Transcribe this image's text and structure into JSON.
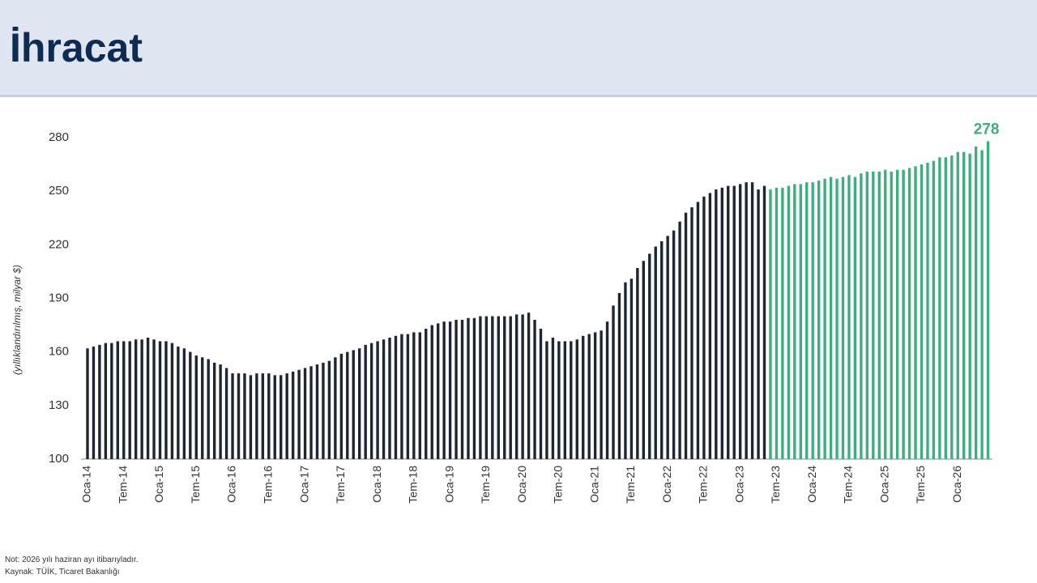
{
  "header": {
    "title": "İhracat"
  },
  "chart_data": {
    "type": "bar",
    "ylabel": "(yıllıklandırılmış, milyar $)",
    "ylim": [
      100,
      280
    ],
    "yticks": [
      100,
      130,
      160,
      190,
      220,
      250,
      280
    ],
    "categories": [
      "Oca-14",
      null,
      null,
      null,
      null,
      null,
      "Tem-14",
      null,
      null,
      null,
      null,
      null,
      "Oca-15",
      null,
      null,
      null,
      null,
      null,
      "Tem-15",
      null,
      null,
      null,
      null,
      null,
      "Oca-16",
      null,
      null,
      null,
      null,
      null,
      "Tem-16",
      null,
      null,
      null,
      null,
      null,
      "Oca-17",
      null,
      null,
      null,
      null,
      null,
      "Tem-17",
      null,
      null,
      null,
      null,
      null,
      "Oca-18",
      null,
      null,
      null,
      null,
      null,
      "Tem-18",
      null,
      null,
      null,
      null,
      null,
      "Oca-19",
      null,
      null,
      null,
      null,
      null,
      "Tem-19",
      null,
      null,
      null,
      null,
      null,
      "Oca-20",
      null,
      null,
      null,
      null,
      null,
      "Tem-20",
      null,
      null,
      null,
      null,
      null,
      "Oca-21",
      null,
      null,
      null,
      null,
      null,
      "Tem-21",
      null,
      null,
      null,
      null,
      null,
      "Oca-22",
      null,
      null,
      null,
      null,
      null,
      "Tem-22",
      null,
      null,
      null,
      null,
      null,
      "Oca-23",
      null,
      null,
      null,
      null,
      null,
      "Tem-23",
      null,
      null,
      null,
      null,
      null,
      "Oca-24",
      null,
      null,
      null,
      null,
      null,
      "Tem-24",
      null,
      null,
      null,
      null,
      null,
      "Oca-25",
      null,
      null,
      null,
      null,
      null,
      "Tem-25",
      null,
      null,
      null,
      null,
      null,
      "Oca-26",
      null,
      null,
      null,
      null,
      null
    ],
    "values": [
      162,
      163,
      164,
      165,
      165,
      166,
      166,
      166,
      167,
      167,
      168,
      167,
      166,
      166,
      165,
      163,
      162,
      160,
      158,
      157,
      156,
      154,
      153,
      151,
      148,
      148,
      148,
      147,
      148,
      148,
      148,
      147,
      147,
      148,
      149,
      150,
      151,
      152,
      153,
      154,
      155,
      157,
      159,
      160,
      161,
      162,
      164,
      165,
      166,
      167,
      168,
      169,
      170,
      170,
      171,
      171,
      173,
      175,
      176,
      177,
      177,
      178,
      178,
      179,
      179,
      180,
      180,
      180,
      180,
      180,
      180,
      181,
      181,
      182,
      178,
      173,
      166,
      168,
      166,
      166,
      166,
      167,
      169,
      170,
      171,
      172,
      177,
      186,
      193,
      199,
      201,
      207,
      211,
      215,
      219,
      222,
      225,
      228,
      233,
      238,
      241,
      244,
      247,
      249,
      251,
      252,
      253,
      253,
      254,
      255,
      255,
      251,
      253,
      251,
      252,
      252,
      253,
      254,
      254,
      255,
      255,
      256,
      257,
      258,
      257,
      258,
      259,
      258,
      260,
      261,
      261,
      261,
      262,
      261,
      262,
      262,
      263,
      264,
      265,
      266,
      267,
      269,
      269,
      270,
      272,
      272,
      271,
      275,
      273,
      278
    ],
    "value_labels": [
      null,
      null,
      null,
      null,
      null,
      null,
      null,
      null,
      null,
      null,
      null,
      null,
      null,
      null,
      null,
      null,
      null,
      null,
      null,
      null,
      null,
      null,
      null,
      null,
      null,
      null,
      null,
      null,
      null,
      null,
      null,
      null,
      null,
      null,
      null,
      null,
      null,
      null,
      null,
      null,
      null,
      null,
      null,
      null,
      null,
      null,
      null,
      null,
      null,
      null,
      null,
      null,
      null,
      null,
      null,
      null,
      null,
      null,
      null,
      null,
      null,
      null,
      null,
      null,
      null,
      null,
      null,
      null,
      null,
      null,
      null,
      null,
      null,
      null,
      null,
      null,
      null,
      null,
      null,
      null,
      null,
      null,
      null,
      null,
      null,
      null,
      null,
      null,
      null,
      null,
      null,
      null,
      null,
      null,
      null,
      null,
      null,
      null,
      null,
      null,
      null,
      null,
      null,
      null,
      null,
      null,
      null,
      null,
      null,
      null,
      null,
      null,
      null,
      null,
      null,
      null,
      null,
      null,
      null,
      null,
      null,
      null,
      null,
      null,
      null,
      null,
      null,
      null,
      null,
      null,
      null,
      null,
      null,
      null,
      null,
      null,
      null,
      null,
      null,
      null,
      null,
      null,
      null,
      null,
      null,
      null,
      null,
      null,
      null,
      "278"
    ],
    "colors": [
      "#1c2733",
      "#1c2733",
      "#1c2733",
      "#1c2733",
      "#1c2733",
      "#1c2733",
      "#1c2733",
      "#1c2733",
      "#1c2733",
      "#1c2733",
      "#1c2733",
      "#1c2733",
      "#1c2733",
      "#1c2733",
      "#1c2733",
      "#1c2733",
      "#1c2733",
      "#1c2733",
      "#1c2733",
      "#1c2733",
      "#1c2733",
      "#1c2733",
      "#1c2733",
      "#1c2733",
      "#1c2733",
      "#1c2733",
      "#1c2733",
      "#1c2733",
      "#1c2733",
      "#1c2733",
      "#1c2733",
      "#1c2733",
      "#1c2733",
      "#1c2733",
      "#1c2733",
      "#1c2733",
      "#1c2733",
      "#1c2733",
      "#1c2733",
      "#1c2733",
      "#1c2733",
      "#1c2733",
      "#1c2733",
      "#1c2733",
      "#1c2733",
      "#1c2733",
      "#1c2733",
      "#1c2733",
      "#1c2733",
      "#1c2733",
      "#1c2733",
      "#1c2733",
      "#1c2733",
      "#1c2733",
      "#1c2733",
      "#1c2733",
      "#1c2733",
      "#1c2733",
      "#1c2733",
      "#1c2733",
      "#1c2733",
      "#1c2733",
      "#1c2733",
      "#1c2733",
      "#1c2733",
      "#1c2733",
      "#1c2733",
      "#1c2733",
      "#1c2733",
      "#1c2733",
      "#1c2733",
      "#1c2733",
      "#1c2733",
      "#1c2733",
      "#1c2733",
      "#1c2733",
      "#1c2733",
      "#1c2733",
      "#1c2733",
      "#1c2733",
      "#1c2733",
      "#1c2733",
      "#1c2733",
      "#1c2733",
      "#1c2733",
      "#1c2733",
      "#1c2733",
      "#1c2733",
      "#1c2733",
      "#1c2733",
      "#1c2733",
      "#1c2733",
      "#1c2733",
      "#1c2733",
      "#1c2733",
      "#1c2733",
      "#1c2733",
      "#1c2733",
      "#1c2733",
      "#1c2733",
      "#1c2733",
      "#1c2733",
      "#1c2733",
      "#1c2733",
      "#1c2733",
      "#1c2733",
      "#1c2733",
      "#1c2733",
      "#1c2733",
      "#1c2733",
      "#1c2733",
      "#1c2733",
      "#1c2733",
      "#3daf7f",
      "#3daf7f",
      "#3daf7f",
      "#3daf7f",
      "#3daf7f",
      "#3daf7f",
      "#3daf7f",
      "#3daf7f",
      "#3daf7f",
      "#3daf7f",
      "#3daf7f",
      "#3daf7f",
      "#3daf7f",
      "#3daf7f",
      "#3daf7f",
      "#3daf7f",
      "#3daf7f",
      "#3daf7f",
      "#3daf7f",
      "#3daf7f",
      "#3daf7f",
      "#3daf7f",
      "#3daf7f",
      "#3daf7f",
      "#3daf7f",
      "#3daf7f",
      "#3daf7f",
      "#3daf7f",
      "#3daf7f",
      "#3daf7f",
      "#3daf7f",
      "#3daf7f",
      "#3daf7f",
      "#3daf7f",
      "#3daf7f",
      "#3daf7f",
      "#3daf7f"
    ],
    "grid": false
  },
  "footer": {
    "note": "Not: 2026 yılı haziran ayı itibarıyladır.",
    "source": "Kaynak: TÜİK, Ticaret Bakanlığı"
  }
}
